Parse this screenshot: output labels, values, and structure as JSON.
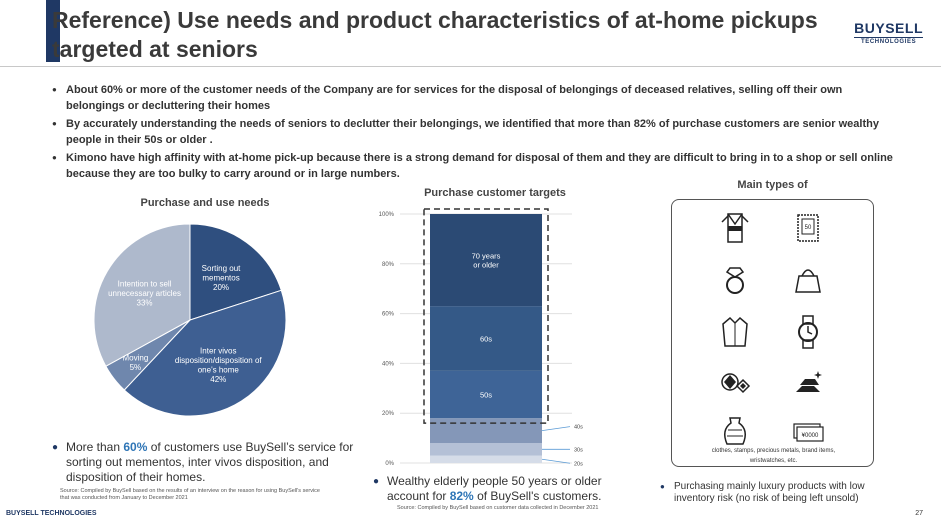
{
  "header": {
    "title": "Reference) Use needs and product characteristics of at-home pickups  targeted at seniors",
    "logo_main": "BUYSELL",
    "logo_sub": "TECHNOLOGIES"
  },
  "bullets": [
    "About 60% or more of the customer needs of the Company are for services for the disposal of belongings of deceased relatives, selling off their own belongings or decluttering their homes",
    "By accurately understanding the needs of seniors to declutter their belongings, we identified that more than 82% of purchase customers are senior wealthy people in their 50s or older .",
    "Kimono have high affinity with at-home pick-up because there is a strong demand for disposal of them and they are difficult to bring in to a shop or sell online because they are too bulky to carry around or in large numbers."
  ],
  "left": {
    "title": "Purchase and use needs",
    "note_pre": "More than ",
    "note_hl": "60%",
    "note_post": " of customers use BuySell’s service for sorting out mementos, inter vivos disposition, and disposition of their homes.",
    "source": "Source: Compiled by BuySell based on the results of an interview on the reason for using BuySell's service that was conducted from January to December 2021"
  },
  "middle": {
    "title": "Purchase customer targets",
    "note_pre": "Wealthy elderly people 50 years or older account for ",
    "note_hl": "82%",
    "note_post": " of BuySell's customers.",
    "source": "Source: Compiled by BuySell based on customer data collected in December 2021"
  },
  "right": {
    "title": "Main types of",
    "caption_line1": "clothes, stamps, precious metals, brand items,",
    "caption_line2": "wristwatches, etc.",
    "note": "Purchasing mainly luxury products with low inventory risk (no risk of being left unsold)",
    "icons": [
      "kimono-icon",
      "stamp-icon",
      "ring-icon",
      "handbag-icon",
      "coat-icon",
      "wristwatch-icon",
      "gemstone-icon",
      "gold-bar-icon",
      "vase-icon",
      "banknote-icon"
    ]
  },
  "footer": {
    "company": "BUYSELL TECHNOLOGIES",
    "page": "27"
  },
  "colors": {
    "navy": "#1f3864",
    "dark_blue": "#2f5597",
    "mid_blue": "#4472c4",
    "light_blue": "#8faadc",
    "grey_blue": "#adb9ca",
    "highlight": "#2e75b6"
  },
  "chart_data": [
    {
      "type": "pie",
      "title": "Purchase and use needs",
      "slices": [
        {
          "label_lines": [
            "Sorting out",
            "mementos",
            "20%"
          ],
          "value": 20,
          "color": "#2f4f7f"
        },
        {
          "label_lines": [
            "Inter vivos",
            "disposition/disposition of",
            "one's home",
            "42%"
          ],
          "value": 42,
          "color": "#3e5f92"
        },
        {
          "label_lines": [
            "Moving",
            "5%"
          ],
          "value": 5,
          "color": "#6f87ad"
        },
        {
          "label_lines": [
            "Intention to sell",
            "unnecessary articles",
            "33%"
          ],
          "value": 33,
          "color": "#aeb9cc"
        }
      ]
    },
    {
      "type": "bar",
      "stacked": true,
      "title": "Purchase customer targets",
      "ylim": [
        0,
        100
      ],
      "yticks": [
        "0%",
        "20%",
        "40%",
        "60%",
        "80%",
        "100%"
      ],
      "segments": [
        {
          "label": "20s",
          "value": 3,
          "color": "#d5dce8",
          "outside": true
        },
        {
          "label": "30s",
          "value": 5,
          "color": "#b4c0d6",
          "outside": true
        },
        {
          "label": "40s",
          "value": 10,
          "color": "#8497b8",
          "outside": true
        },
        {
          "label": "50s",
          "value": 19,
          "color": "#3e6497",
          "outside": false
        },
        {
          "label": "60s",
          "value": 26,
          "color": "#345987",
          "outside": false
        },
        {
          "label_lines": [
            "70 years",
            "or older"
          ],
          "value": 37,
          "color": "#2b4a74",
          "outside": false
        }
      ]
    }
  ]
}
